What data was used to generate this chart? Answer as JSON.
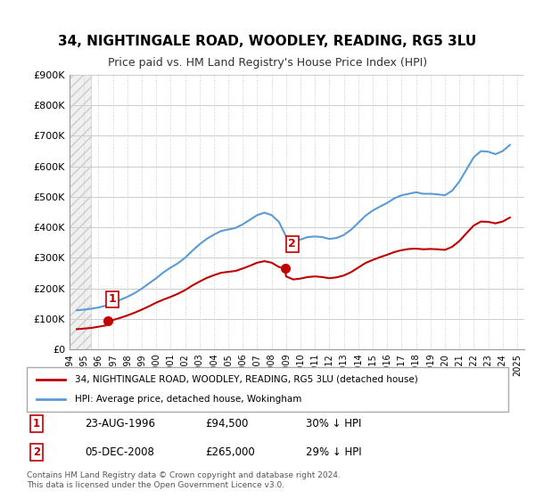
{
  "title": "34, NIGHTINGALE ROAD, WOODLEY, READING, RG5 3LU",
  "subtitle": "Price paid vs. HM Land Registry's House Price Index (HPI)",
  "ylabel": "",
  "ylim": [
    0,
    900000
  ],
  "yticks": [
    0,
    100000,
    200000,
    300000,
    400000,
    500000,
    600000,
    700000,
    800000,
    900000
  ],
  "ytick_labels": [
    "£0",
    "£100K",
    "£200K",
    "£300K",
    "£400K",
    "£500K",
    "£600K",
    "£700K",
    "£800K",
    "£900K"
  ],
  "xlim_start": 1994.0,
  "xlim_end": 2025.5,
  "hatch_end": 1995.5,
  "transaction1_date": 1996.65,
  "transaction1_price": 94500,
  "transaction2_date": 2008.92,
  "transaction2_price": 265000,
  "transaction1_label": "1",
  "transaction2_label": "2",
  "hpi_color": "#5b9bd5",
  "price_color": "#c00000",
  "background_color": "#ffffff",
  "grid_color": "#cccccc",
  "legend_entry1": "34, NIGHTINGALE ROAD, WOODLEY, READING, RG5 3LU (detached house)",
  "legend_entry2": "HPI: Average price, detached house, Wokingham",
  "table_row1": [
    "1",
    "23-AUG-1996",
    "£94,500",
    "30% ↓ HPI"
  ],
  "table_row2": [
    "2",
    "05-DEC-2008",
    "£265,000",
    "29% ↓ HPI"
  ],
  "footer": "Contains HM Land Registry data © Crown copyright and database right 2024.\nThis data is licensed under the Open Government Licence v3.0.",
  "hpi_x": [
    1994.5,
    1995.0,
    1995.5,
    1996.0,
    1996.5,
    1997.0,
    1997.5,
    1998.0,
    1998.5,
    1999.0,
    1999.5,
    2000.0,
    2000.5,
    2001.0,
    2001.5,
    2002.0,
    2002.5,
    2003.0,
    2003.5,
    2004.0,
    2004.5,
    2005.0,
    2005.5,
    2006.0,
    2006.5,
    2007.0,
    2007.5,
    2008.0,
    2008.5,
    2009.0,
    2009.5,
    2010.0,
    2010.5,
    2011.0,
    2011.5,
    2012.0,
    2012.5,
    2013.0,
    2013.5,
    2014.0,
    2014.5,
    2015.0,
    2015.5,
    2016.0,
    2016.5,
    2017.0,
    2017.5,
    2018.0,
    2018.5,
    2019.0,
    2019.5,
    2020.0,
    2020.5,
    2021.0,
    2021.5,
    2022.0,
    2022.5,
    2023.0,
    2023.5,
    2024.0,
    2024.5
  ],
  "hpi_y": [
    128000,
    130000,
    133000,
    137000,
    143000,
    152000,
    162000,
    172000,
    184000,
    199000,
    216000,
    233000,
    252000,
    268000,
    282000,
    300000,
    323000,
    344000,
    362000,
    376000,
    388000,
    393000,
    398000,
    410000,
    425000,
    440000,
    448000,
    440000,
    418000,
    370000,
    355000,
    360000,
    368000,
    370000,
    368000,
    362000,
    365000,
    375000,
    392000,
    415000,
    438000,
    455000,
    468000,
    480000,
    495000,
    505000,
    510000,
    515000,
    510000,
    510000,
    508000,
    505000,
    520000,
    550000,
    590000,
    630000,
    650000,
    648000,
    640000,
    650000,
    670000
  ],
  "price_x": [
    1994.5,
    1995.0,
    1995.5,
    1996.0,
    1996.5,
    1996.65,
    1997.0,
    1997.5,
    1998.0,
    1998.5,
    1999.0,
    1999.5,
    2000.0,
    2000.5,
    2001.0,
    2001.5,
    2002.0,
    2002.5,
    2003.0,
    2003.5,
    2004.0,
    2004.5,
    2005.0,
    2005.5,
    2006.0,
    2006.5,
    2007.0,
    2007.5,
    2008.0,
    2008.5,
    2008.92,
    2009.0,
    2009.5,
    2010.0,
    2010.5,
    2011.0,
    2011.5,
    2012.0,
    2012.5,
    2013.0,
    2013.5,
    2014.0,
    2014.5,
    2015.0,
    2015.5,
    2016.0,
    2016.5,
    2017.0,
    2017.5,
    2018.0,
    2018.5,
    2019.0,
    2019.5,
    2020.0,
    2020.5,
    2021.0,
    2021.5,
    2022.0,
    2022.5,
    2023.0,
    2023.5,
    2024.0,
    2024.5
  ],
  "price_y": [
    66000,
    68000,
    70000,
    74000,
    78000,
    94500,
    96000,
    103000,
    111000,
    120000,
    130000,
    141000,
    153000,
    163000,
    172000,
    182000,
    194000,
    209000,
    222000,
    234000,
    243000,
    251000,
    254000,
    257000,
    265000,
    274000,
    284000,
    289000,
    284000,
    270000,
    265000,
    239000,
    229000,
    232000,
    237000,
    239000,
    237000,
    233000,
    236000,
    242000,
    253000,
    268000,
    283000,
    293000,
    302000,
    310000,
    319000,
    325000,
    329000,
    330000,
    328000,
    329000,
    328000,
    326000,
    336000,
    355000,
    381000,
    406000,
    419000,
    418000,
    413000,
    419000,
    432000
  ]
}
